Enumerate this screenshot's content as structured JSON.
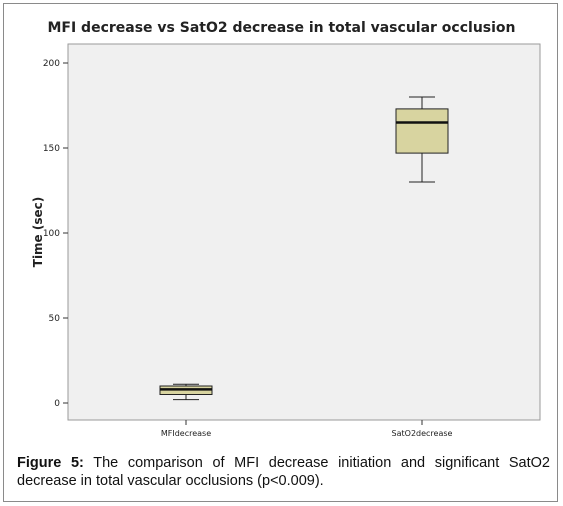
{
  "chart_data": {
    "type": "boxplot",
    "title": "MFI decrease vs SatO2 decrease in total vascular occlusion",
    "xlabel": "",
    "ylabel": "Time (sec)",
    "ylim": [
      0,
      210
    ],
    "yticks": [
      0,
      50,
      100,
      150,
      200
    ],
    "grid": false,
    "box_color": "#d8d4a0",
    "categories": [
      "MFIdecrease",
      "SatO2decrease"
    ],
    "boxes": [
      {
        "name": "MFIdecrease",
        "min": 2,
        "q1": 5,
        "median": 8,
        "q3": 10,
        "max": 11
      },
      {
        "name": "SatO2decrease",
        "min": 130,
        "q1": 147,
        "median": 165,
        "q3": 173,
        "max": 180
      }
    ]
  },
  "caption": {
    "label": "Figure 5:",
    "text": " The comparison of MFI decrease initiation and significant SatO2 decrease in total vascular occlusions (p<0.009)."
  }
}
